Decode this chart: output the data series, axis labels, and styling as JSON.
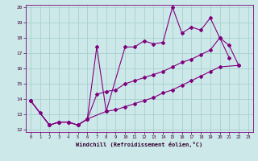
{
  "xlabel": "Windchill (Refroidissement éolien,°C)",
  "color": "#800080",
  "bg_color": "#cce8e8",
  "grid_color": "#a8d0d0",
  "ylim": [
    12,
    20
  ],
  "xlim": [
    -0.5,
    23.5
  ],
  "yticks": [
    12,
    13,
    14,
    15,
    16,
    17,
    18,
    19,
    20
  ],
  "xticks": [
    0,
    1,
    2,
    3,
    4,
    5,
    6,
    7,
    8,
    9,
    10,
    11,
    12,
    13,
    14,
    15,
    16,
    17,
    18,
    19,
    20,
    21,
    22,
    23
  ],
  "upper_x": [
    0,
    1,
    2,
    3,
    4,
    5,
    6,
    7,
    8,
    10,
    11,
    12,
    13,
    14,
    15,
    16,
    17,
    18,
    19,
    20,
    21
  ],
  "upper_y": [
    13.9,
    13.1,
    12.3,
    12.5,
    12.5,
    12.3,
    12.7,
    17.4,
    13.2,
    17.4,
    17.4,
    17.8,
    17.6,
    17.7,
    20.0,
    18.3,
    18.7,
    18.5,
    19.3,
    18.0,
    16.7
  ],
  "mid_x": [
    0,
    2,
    3,
    4,
    5,
    6,
    7,
    8,
    9,
    10,
    11,
    12,
    13,
    14,
    15,
    16,
    17,
    18,
    19,
    20,
    21,
    22
  ],
  "mid_y": [
    13.9,
    12.3,
    12.5,
    12.5,
    12.3,
    12.7,
    14.3,
    14.5,
    14.6,
    15.0,
    15.2,
    15.4,
    15.6,
    15.8,
    16.1,
    16.4,
    16.6,
    16.9,
    17.2,
    18.0,
    17.5,
    16.2
  ],
  "low_x": [
    0,
    2,
    3,
    4,
    5,
    6,
    8,
    9,
    10,
    11,
    12,
    13,
    14,
    15,
    16,
    17,
    18,
    19,
    20,
    22
  ],
  "low_y": [
    13.9,
    12.3,
    12.5,
    12.5,
    12.3,
    12.7,
    13.2,
    13.3,
    13.5,
    13.7,
    13.9,
    14.1,
    14.4,
    14.6,
    14.9,
    15.2,
    15.5,
    15.8,
    16.1,
    16.2
  ]
}
